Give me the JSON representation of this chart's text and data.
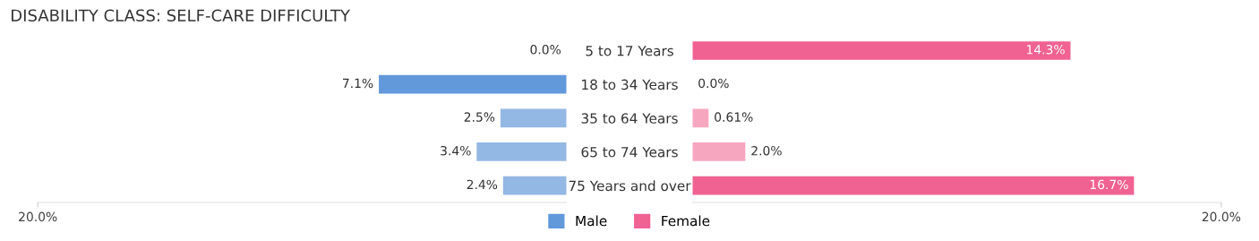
{
  "chart_data": [
    {
      "type": "bar",
      "orientation": "horizontal",
      "title": "DISABILITY CLASS: SELF-CARE DIFFICULTY",
      "categories": [
        "5 to 17 Years",
        "18 to 34 Years",
        "35 to 64 Years",
        "65 to 74 Years",
        "75 Years and over"
      ],
      "series": [
        {
          "name": "Male",
          "color": "#6199db",
          "colors": [
            "#a9c8ec",
            "#6199db",
            "#93b8e3",
            "#93b8e3",
            "#93b8e3"
          ],
          "values": [
            0.0,
            7.1,
            2.5,
            3.4,
            2.4
          ],
          "value_labels": [
            "0.0%",
            "7.1%",
            "2.5%",
            "3.4%",
            "2.4%"
          ]
        }
      ],
      "xlim": [
        20,
        0
      ],
      "xticks": [
        {
          "value": 20,
          "label": "20.0%"
        }
      ],
      "grid": false,
      "legend": "bottom"
    },
    {
      "type": "bar",
      "orientation": "horizontal",
      "categories": [
        null,
        null,
        null,
        null,
        null
      ],
      "series": [
        {
          "name": "Female",
          "color": "#f06292",
          "colors": [
            "#f06292",
            "#f7a6c0",
            "#f7a6c0",
            "#f7a6c0",
            "#f06292"
          ],
          "values": [
            14.3,
            0.0,
            0.61,
            2.0,
            16.7
          ],
          "value_labels": [
            "14.3%",
            "0.0%",
            "0.61%",
            "2.0%",
            "16.7%"
          ]
        }
      ],
      "xlim": [
        0,
        20
      ],
      "xticks": [
        {
          "value": 20,
          "label": "20.0%"
        }
      ],
      "grid": false,
      "legend": "bottom"
    }
  ]
}
